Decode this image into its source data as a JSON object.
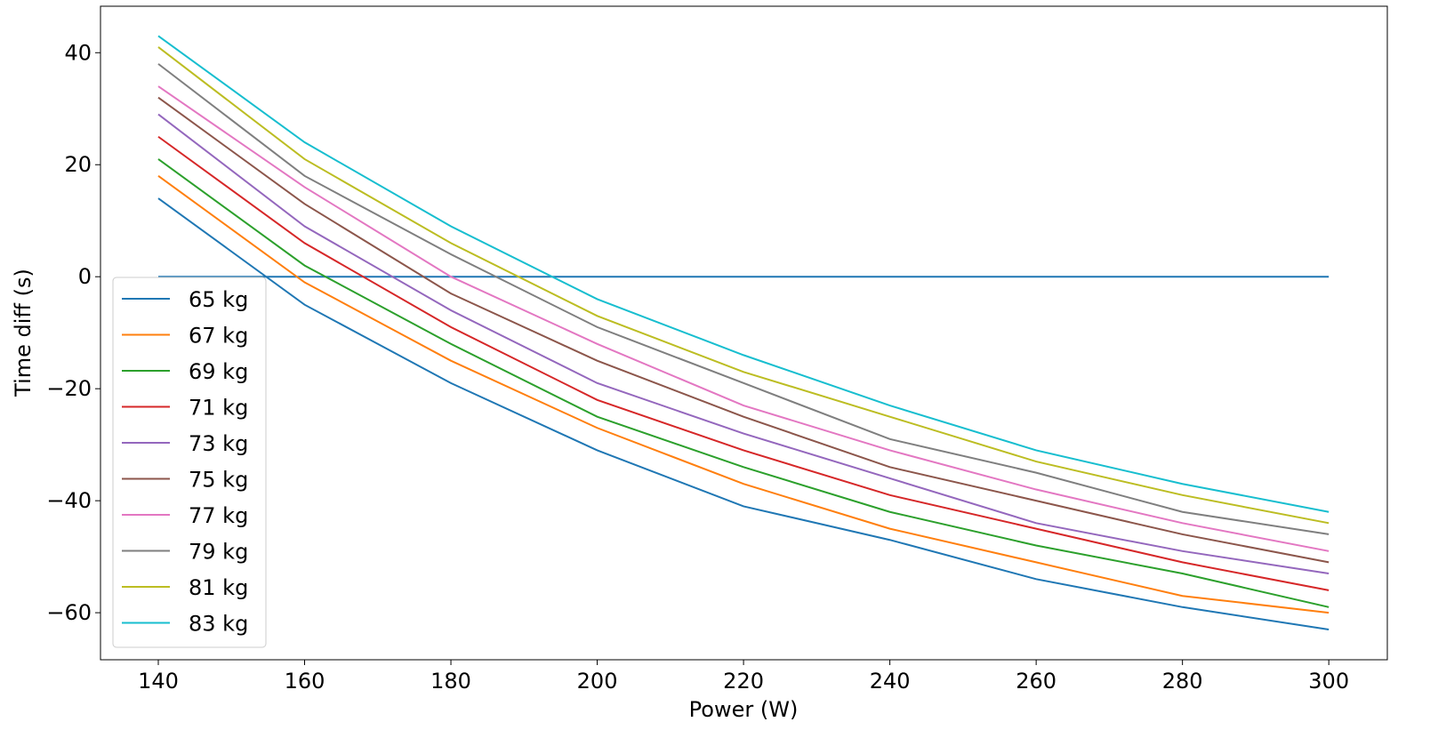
{
  "chart_data": {
    "type": "line",
    "title": "",
    "xlabel": "Power (W)",
    "ylabel": "Time diff (s)",
    "xlim": [
      132.1,
      308.0
    ],
    "ylim": [
      -68.4,
      48.3
    ],
    "grid": false,
    "legend_placement": "lower-left",
    "xticks": [
      140,
      160,
      180,
      200,
      220,
      240,
      260,
      280,
      300
    ],
    "yticks": [
      -60,
      -40,
      -20,
      0,
      20,
      40
    ],
    "ytick_labels": [
      "−60",
      "−40",
      "−20",
      "0",
      "20",
      "40"
    ],
    "x": [
      140,
      160,
      180,
      200,
      220,
      240,
      260,
      280,
      300
    ],
    "reference_line": {
      "y": 0,
      "color": "#1f77b4"
    },
    "series": [
      {
        "name": "65 kg",
        "color": "#1f77b4",
        "values": [
          14,
          -5,
          -19,
          -31,
          -41,
          -47,
          -54,
          -59,
          -63
        ]
      },
      {
        "name": "67 kg",
        "color": "#ff7f0e",
        "values": [
          18,
          -1,
          -15,
          -27,
          -37,
          -45,
          -51,
          -57,
          -60
        ]
      },
      {
        "name": "69 kg",
        "color": "#2ca02c",
        "values": [
          21,
          2,
          -12,
          -25,
          -34,
          -42,
          -48,
          -53,
          -59
        ]
      },
      {
        "name": "71 kg",
        "color": "#d62728",
        "values": [
          25,
          6,
          -9,
          -22,
          -31,
          -39,
          -45,
          -51,
          -56
        ]
      },
      {
        "name": "73 kg",
        "color": "#9467bd",
        "values": [
          29,
          9,
          -6,
          -19,
          -28,
          -36,
          -44,
          -49,
          -53
        ]
      },
      {
        "name": "75 kg",
        "color": "#8c564b",
        "values": [
          32,
          13,
          -3,
          -15,
          -25,
          -34,
          -40,
          -46,
          -51
        ]
      },
      {
        "name": "77 kg",
        "color": "#e377c2",
        "values": [
          34,
          16,
          0,
          -12,
          -23,
          -31,
          -38,
          -44,
          -49
        ]
      },
      {
        "name": "79 kg",
        "color": "#7f7f7f",
        "values": [
          38,
          18,
          4,
          -9,
          -19,
          -29,
          -35,
          -42,
          -46
        ]
      },
      {
        "name": "81 kg",
        "color": "#bcbd22",
        "values": [
          41,
          21,
          6,
          -7,
          -17,
          -25,
          -33,
          -39,
          -44
        ]
      },
      {
        "name": "83 kg",
        "color": "#17becf",
        "values": [
          43,
          24,
          9,
          -4,
          -14,
          -23,
          -31,
          -37,
          -42
        ]
      }
    ]
  }
}
